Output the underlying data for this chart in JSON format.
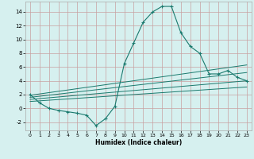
{
  "xlabel": "Humidex (Indice chaleur)",
  "bg_color": "#d6f0ef",
  "line_color": "#1a7a6e",
  "grid_color": "#c8a0a0",
  "xlim": [
    -0.5,
    23.5
  ],
  "ylim": [
    -3.2,
    15.5
  ],
  "xticks": [
    0,
    1,
    2,
    3,
    4,
    5,
    6,
    7,
    8,
    9,
    10,
    11,
    12,
    13,
    14,
    15,
    16,
    17,
    18,
    19,
    20,
    21,
    22,
    23
  ],
  "yticks": [
    -2,
    0,
    2,
    4,
    6,
    8,
    10,
    12,
    14
  ],
  "main_line_x": [
    0,
    1,
    2,
    3,
    4,
    5,
    6,
    7,
    8,
    9,
    10,
    11,
    12,
    13,
    14,
    15,
    16,
    17,
    18,
    19,
    20,
    21,
    22,
    23
  ],
  "main_line_y": [
    2.0,
    0.8,
    0.0,
    -0.3,
    -0.5,
    -0.7,
    -1.0,
    -2.5,
    -1.5,
    0.3,
    6.5,
    9.5,
    12.5,
    14.0,
    14.8,
    14.8,
    11.0,
    9.0,
    8.0,
    5.0,
    5.0,
    5.5,
    4.5,
    4.0
  ],
  "line2_x": [
    0,
    23
  ],
  "line2_y": [
    1.9,
    6.3
  ],
  "line3_x": [
    0,
    23
  ],
  "line3_y": [
    1.6,
    5.2
  ],
  "line4_x": [
    0,
    23
  ],
  "line4_y": [
    1.3,
    4.0
  ],
  "line5_x": [
    0,
    23
  ],
  "line5_y": [
    1.0,
    3.1
  ]
}
